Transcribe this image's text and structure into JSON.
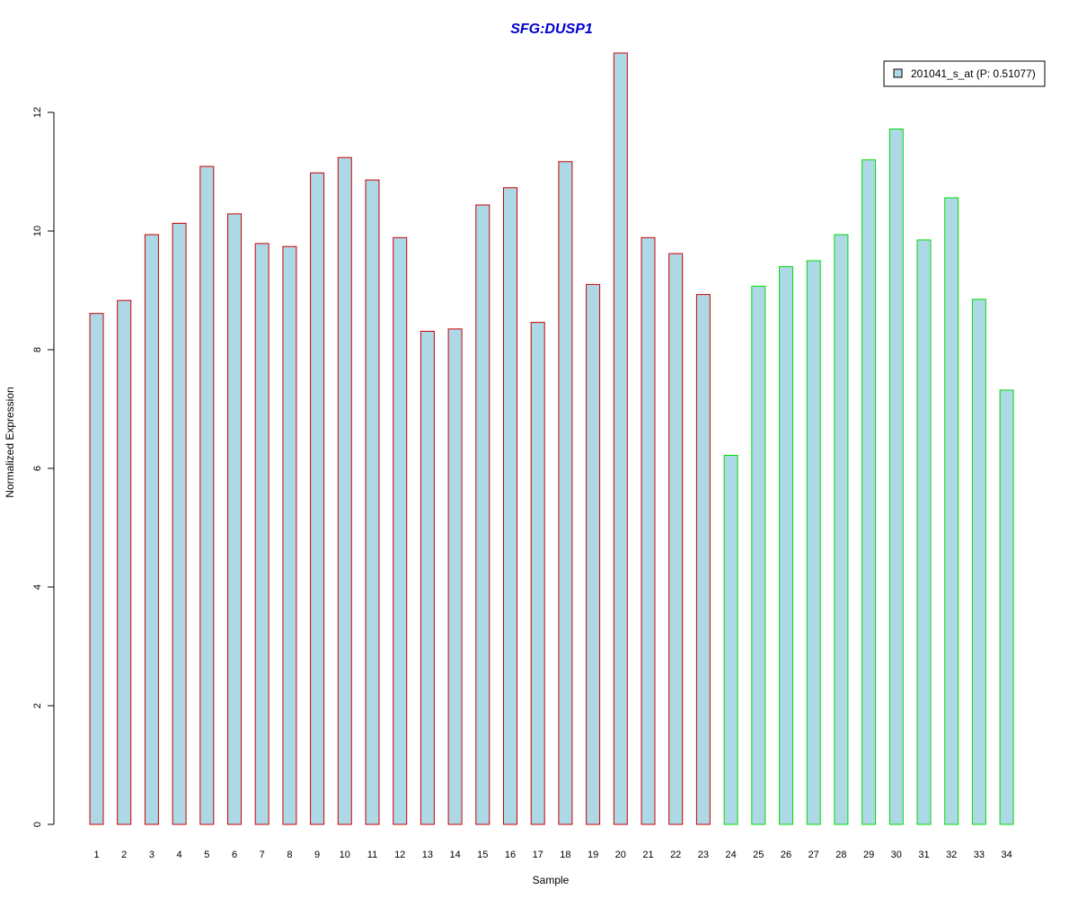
{
  "chart_data": {
    "type": "bar",
    "title": "SFG:DUSP1",
    "title_color": "#0000CC",
    "xlabel": "Sample",
    "ylabel": "Normalized Expression",
    "ylim": [
      0,
      13
    ],
    "yticks": [
      0,
      2,
      4,
      6,
      8,
      10,
      12
    ],
    "grid": false,
    "legend_position": "top-right",
    "bar_fill": "#ADD8E6",
    "categories": [
      "1",
      "2",
      "3",
      "4",
      "5",
      "6",
      "7",
      "8",
      "9",
      "10",
      "11",
      "12",
      "13",
      "14",
      "15",
      "16",
      "17",
      "18",
      "19",
      "20",
      "21",
      "22",
      "23",
      "24",
      "25",
      "26",
      "27",
      "28",
      "29",
      "30",
      "31",
      "32",
      "33",
      "34"
    ],
    "series": [
      {
        "name": "201041_s_at (P: 0.51077)",
        "values": [
          8.61,
          8.83,
          9.94,
          10.13,
          11.09,
          10.29,
          9.79,
          9.74,
          10.98,
          11.24,
          10.86,
          9.89,
          8.31,
          8.35,
          10.44,
          10.73,
          8.46,
          11.17,
          9.1,
          13.0,
          9.89,
          9.62,
          8.93,
          6.22,
          9.07,
          9.4,
          9.5,
          9.94,
          11.2,
          11.72,
          9.85,
          10.56,
          8.85,
          7.32
        ]
      }
    ],
    "bar_border_colors": [
      "#CC0000",
      "#CC0000",
      "#CC0000",
      "#CC0000",
      "#CC0000",
      "#CC0000",
      "#CC0000",
      "#CC0000",
      "#CC0000",
      "#CC0000",
      "#CC0000",
      "#CC0000",
      "#CC0000",
      "#CC0000",
      "#CC0000",
      "#CC0000",
      "#CC0000",
      "#CC0000",
      "#CC0000",
      "#CC0000",
      "#CC0000",
      "#CC0000",
      "#CC0000",
      "#00DD00",
      "#00DD00",
      "#00DD00",
      "#00DD00",
      "#00DD00",
      "#00DD00",
      "#00DD00",
      "#00DD00",
      "#00DD00",
      "#00DD00",
      "#00DD00"
    ]
  }
}
